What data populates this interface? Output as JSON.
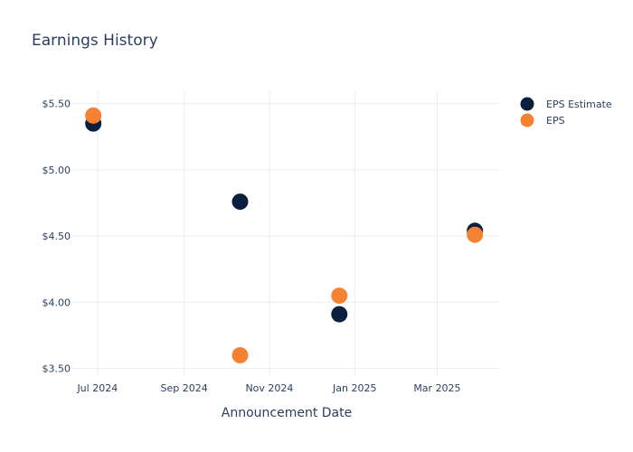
{
  "colors": {
    "eps_estimate": "#0b1f3f",
    "eps": "#f58233",
    "grid": "#ebedf2",
    "text": "#2a3f5f"
  },
  "chart_data": {
    "type": "scatter",
    "title": "Earnings History",
    "xlabel": "Announcement Date",
    "ylabel": "",
    "x_tick_labels": [
      "Jul 2024",
      "Sep 2024",
      "Nov 2024",
      "Jan 2025",
      "Mar 2025"
    ],
    "x_ticks": [
      "2024-07-01",
      "2024-09-01",
      "2024-11-01",
      "2025-01-01",
      "2025-03-01"
    ],
    "xlim": [
      "2024-06-13",
      "2025-04-15"
    ],
    "y_tick_labels": [
      "$3.50",
      "$4.00",
      "$4.50",
      "$5.00",
      "$5.50"
    ],
    "y_ticks": [
      3.5,
      4.0,
      4.5,
      5.0,
      5.5
    ],
    "ylim": [
      3.45,
      5.6
    ],
    "grid": true,
    "legend_position": "top-right",
    "series": [
      {
        "name": "EPS Estimate",
        "x": [
          "2024-06-28",
          "2024-10-11",
          "2024-12-21",
          "2025-03-28"
        ],
        "y": [
          5.35,
          4.76,
          3.91,
          4.54
        ]
      },
      {
        "name": "EPS",
        "x": [
          "2024-06-28",
          "2024-10-11",
          "2024-12-21",
          "2025-03-28"
        ],
        "y": [
          5.41,
          3.6,
          4.05,
          4.51
        ]
      }
    ]
  }
}
